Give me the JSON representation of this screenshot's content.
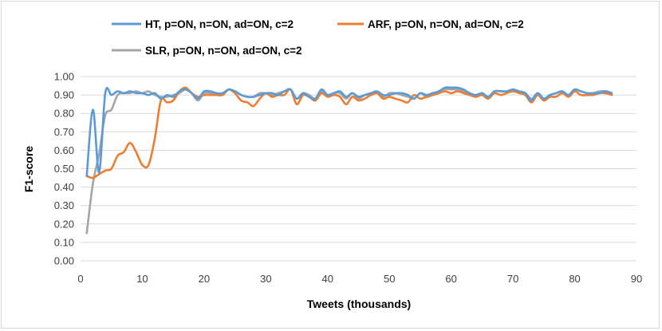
{
  "chart_data": {
    "type": "line",
    "xlabel": "Tweets (thousands)",
    "ylabel": "F1-score",
    "xlim": [
      0,
      90
    ],
    "ylim": [
      0,
      1.0
    ],
    "x_ticks": [
      "0",
      "10",
      "20",
      "30",
      "40",
      "50",
      "60",
      "70",
      "80",
      "90"
    ],
    "y_ticks": [
      "0.00",
      "0.10",
      "0.20",
      "0.30",
      "0.40",
      "0.50",
      "0.60",
      "0.70",
      "0.80",
      "0.90",
      "1.00"
    ],
    "grid": "horizontal",
    "legend_position": "top",
    "series": [
      {
        "name": "HT, p=ON, n=ON, ad=ON, c=2",
        "color": "#5b9bd5",
        "x": [
          1,
          2,
          3,
          4,
          5,
          6,
          7,
          8,
          9,
          10,
          11,
          12,
          13,
          14,
          15,
          16,
          17,
          18,
          19,
          20,
          21,
          22,
          23,
          24,
          25,
          26,
          27,
          28,
          29,
          30,
          31,
          32,
          33,
          34,
          35,
          36,
          37,
          38,
          39,
          40,
          41,
          42,
          43,
          44,
          45,
          46,
          47,
          48,
          49,
          50,
          51,
          52,
          53,
          54,
          55,
          56,
          57,
          58,
          59,
          60,
          61,
          62,
          63,
          64,
          65,
          66,
          67,
          68,
          69,
          70,
          71,
          72,
          73,
          74,
          75,
          76,
          77,
          78,
          79,
          80,
          81,
          82,
          83,
          84,
          85,
          86
        ],
        "y": [
          0.46,
          0.82,
          0.48,
          0.91,
          0.9,
          0.92,
          0.91,
          0.92,
          0.91,
          0.91,
          0.9,
          0.91,
          0.88,
          0.9,
          0.89,
          0.92,
          0.93,
          0.91,
          0.88,
          0.92,
          0.92,
          0.91,
          0.91,
          0.93,
          0.92,
          0.9,
          0.89,
          0.89,
          0.9,
          0.91,
          0.91,
          0.9,
          0.92,
          0.93,
          0.88,
          0.91,
          0.89,
          0.88,
          0.93,
          0.9,
          0.91,
          0.92,
          0.89,
          0.91,
          0.89,
          0.9,
          0.91,
          0.92,
          0.9,
          0.9,
          0.91,
          0.91,
          0.9,
          0.88,
          0.91,
          0.9,
          0.91,
          0.92,
          0.94,
          0.94,
          0.94,
          0.93,
          0.91,
          0.9,
          0.91,
          0.89,
          0.92,
          0.92,
          0.92,
          0.93,
          0.92,
          0.91,
          0.87,
          0.91,
          0.88,
          0.9,
          0.91,
          0.92,
          0.9,
          0.93,
          0.92,
          0.91,
          0.91,
          0.91,
          0.92,
          0.91
        ]
      },
      {
        "name": "ARF, p=ON, n=ON, ad=ON, c=2",
        "color": "#ed7d31",
        "x": [
          1,
          2,
          3,
          4,
          5,
          6,
          7,
          8,
          9,
          10,
          11,
          12,
          13,
          14,
          15,
          16,
          17,
          18,
          19,
          20,
          21,
          22,
          23,
          24,
          25,
          26,
          27,
          28,
          29,
          30,
          31,
          32,
          33,
          34,
          35,
          36,
          37,
          38,
          39,
          40,
          41,
          42,
          43,
          44,
          45,
          46,
          47,
          48,
          49,
          50,
          51,
          52,
          53,
          54,
          55,
          56,
          57,
          58,
          59,
          60,
          61,
          62,
          63,
          64,
          65,
          66,
          67,
          68,
          69,
          70,
          71,
          72,
          73,
          74,
          75,
          76,
          77,
          78,
          79,
          80,
          81,
          82,
          83,
          84,
          85,
          86
        ],
        "y": [
          0.46,
          0.45,
          0.47,
          0.49,
          0.5,
          0.57,
          0.59,
          0.64,
          0.59,
          0.52,
          0.52,
          0.66,
          0.87,
          0.86,
          0.87,
          0.92,
          0.94,
          0.91,
          0.89,
          0.9,
          0.9,
          0.9,
          0.9,
          0.93,
          0.91,
          0.87,
          0.86,
          0.84,
          0.88,
          0.91,
          0.89,
          0.9,
          0.9,
          0.93,
          0.85,
          0.9,
          0.89,
          0.87,
          0.91,
          0.89,
          0.9,
          0.89,
          0.85,
          0.89,
          0.87,
          0.88,
          0.9,
          0.91,
          0.88,
          0.89,
          0.88,
          0.87,
          0.86,
          0.9,
          0.88,
          0.89,
          0.9,
          0.91,
          0.92,
          0.91,
          0.92,
          0.91,
          0.9,
          0.89,
          0.9,
          0.88,
          0.91,
          0.9,
          0.91,
          0.92,
          0.91,
          0.9,
          0.86,
          0.9,
          0.87,
          0.89,
          0.89,
          0.91,
          0.89,
          0.92,
          0.9,
          0.9,
          0.9,
          0.91,
          0.91,
          0.9
        ]
      },
      {
        "name": "SLR, p=ON, n=ON, ad=ON, c=2",
        "color": "#a5a5a5",
        "x": [
          1,
          2,
          3,
          4,
          5,
          6,
          7,
          8,
          9,
          10,
          11,
          12,
          13,
          14,
          15,
          16,
          17,
          18,
          19,
          20,
          21,
          22,
          23,
          24,
          25,
          26,
          27,
          28,
          29,
          30,
          31,
          32,
          33,
          34,
          35,
          36,
          37,
          38,
          39,
          40,
          41,
          42,
          43,
          44,
          45,
          46,
          47,
          48,
          49,
          50,
          51,
          52,
          53,
          54,
          55,
          56,
          57,
          58,
          59,
          60,
          61,
          62,
          63,
          64,
          65,
          66,
          67,
          68,
          69,
          70,
          71,
          72,
          73,
          74,
          75,
          76,
          77,
          78,
          79,
          80,
          81,
          82,
          83,
          84,
          85,
          86
        ],
        "y": [
          0.15,
          0.42,
          0.58,
          0.79,
          0.82,
          0.9,
          0.91,
          0.91,
          0.92,
          0.91,
          0.92,
          0.9,
          0.89,
          0.89,
          0.9,
          0.91,
          0.93,
          0.91,
          0.87,
          0.91,
          0.91,
          0.9,
          0.91,
          0.93,
          0.92,
          0.9,
          0.89,
          0.89,
          0.91,
          0.91,
          0.9,
          0.91,
          0.92,
          0.93,
          0.88,
          0.91,
          0.9,
          0.88,
          0.92,
          0.9,
          0.91,
          0.91,
          0.88,
          0.91,
          0.88,
          0.9,
          0.9,
          0.91,
          0.89,
          0.91,
          0.91,
          0.9,
          0.89,
          0.88,
          0.91,
          0.89,
          0.9,
          0.91,
          0.93,
          0.93,
          0.93,
          0.92,
          0.91,
          0.89,
          0.91,
          0.89,
          0.92,
          0.92,
          0.92,
          0.93,
          0.92,
          0.91,
          0.88,
          0.91,
          0.88,
          0.9,
          0.91,
          0.92,
          0.9,
          0.93,
          0.92,
          0.91,
          0.91,
          0.92,
          0.92,
          0.91
        ]
      }
    ]
  }
}
